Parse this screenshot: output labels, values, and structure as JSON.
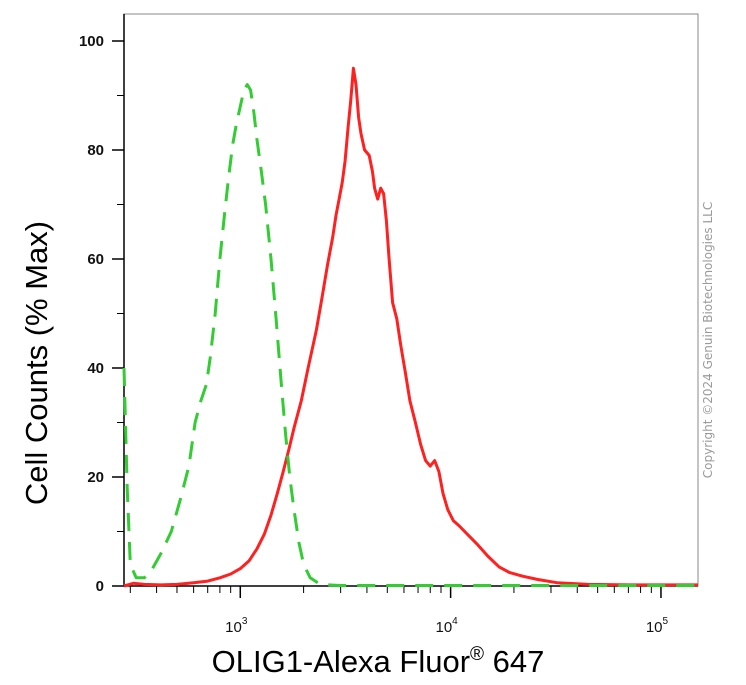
{
  "chart_data": {
    "type": "line",
    "title": "",
    "xlabel": "OLIG1-Alexa Fluor",
    "xlabel_superscript": "®",
    "xlabel_suffix": " 647",
    "ylabel": "Cell Counts (% Max)",
    "x_scale": "log",
    "xlim": [
      280,
      150000
    ],
    "ylim": [
      0,
      100
    ],
    "y_ticks": [
      "0",
      "20",
      "40",
      "60",
      "80",
      "100"
    ],
    "x_ticks": [
      {
        "value": 1000,
        "base": "10",
        "exp": "3"
      },
      {
        "value": 10000,
        "base": "10",
        "exp": "4"
      },
      {
        "value": 100000,
        "base": "10",
        "exp": "5"
      }
    ],
    "grid": false,
    "series": [
      {
        "color": "#ff2020",
        "style": "solid",
        "points": [
          [
            280,
            0
          ],
          [
            310,
            0.5
          ],
          [
            350,
            0.3
          ],
          [
            420,
            0.2
          ],
          [
            500,
            0.3
          ],
          [
            600,
            0.6
          ],
          [
            700,
            0.9
          ],
          [
            800,
            1.5
          ],
          [
            900,
            2.2
          ],
          [
            1000,
            3.2
          ],
          [
            1100,
            4.6
          ],
          [
            1200,
            6.8
          ],
          [
            1300,
            9.5
          ],
          [
            1400,
            13
          ],
          [
            1500,
            17
          ],
          [
            1600,
            21
          ],
          [
            1700,
            25
          ],
          [
            1800,
            29
          ],
          [
            1950,
            34
          ],
          [
            2100,
            40
          ],
          [
            2300,
            47
          ],
          [
            2450,
            53
          ],
          [
            2600,
            59
          ],
          [
            2750,
            64
          ],
          [
            2850,
            68
          ],
          [
            2950,
            71
          ],
          [
            3050,
            74
          ],
          [
            3150,
            78
          ],
          [
            3250,
            84
          ],
          [
            3350,
            89
          ],
          [
            3450,
            95
          ],
          [
            3550,
            92
          ],
          [
            3650,
            86
          ],
          [
            3750,
            83
          ],
          [
            3900,
            80
          ],
          [
            4100,
            79
          ],
          [
            4250,
            76
          ],
          [
            4350,
            73
          ],
          [
            4500,
            71
          ],
          [
            4650,
            73
          ],
          [
            4800,
            72
          ],
          [
            4950,
            67
          ],
          [
            5100,
            60
          ],
          [
            5300,
            52
          ],
          [
            5550,
            49
          ],
          [
            5800,
            44
          ],
          [
            6100,
            39
          ],
          [
            6400,
            34
          ],
          [
            6800,
            30
          ],
          [
            7200,
            26
          ],
          [
            7600,
            23
          ],
          [
            8000,
            22
          ],
          [
            8400,
            23
          ],
          [
            8800,
            21
          ],
          [
            9200,
            17
          ],
          [
            9700,
            14
          ],
          [
            10300,
            12
          ],
          [
            11000,
            11
          ],
          [
            12000,
            9.5
          ],
          [
            13500,
            7.5
          ],
          [
            15000,
            5.5
          ],
          [
            17000,
            3.5
          ],
          [
            19000,
            2.5
          ],
          [
            22000,
            1.8
          ],
          [
            26000,
            1.2
          ],
          [
            32000,
            0.6
          ],
          [
            45000,
            0.3
          ],
          [
            70000,
            0.2
          ],
          [
            150000,
            0.2
          ]
        ]
      },
      {
        "color": "#33cc33",
        "style": "dashed",
        "points": [
          [
            280,
            40
          ],
          [
            290,
            18
          ],
          [
            300,
            4
          ],
          [
            320,
            1.5
          ],
          [
            350,
            1.5
          ],
          [
            380,
            3
          ],
          [
            420,
            6
          ],
          [
            470,
            10
          ],
          [
            520,
            16
          ],
          [
            570,
            22
          ],
          [
            610,
            30
          ],
          [
            650,
            34
          ],
          [
            690,
            37
          ],
          [
            720,
            42
          ],
          [
            760,
            50
          ],
          [
            800,
            60
          ],
          [
            840,
            68
          ],
          [
            880,
            75
          ],
          [
            920,
            81
          ],
          [
            960,
            85
          ],
          [
            1000,
            88
          ],
          [
            1040,
            91
          ],
          [
            1080,
            92
          ],
          [
            1120,
            91
          ],
          [
            1160,
            87
          ],
          [
            1200,
            82
          ],
          [
            1260,
            76
          ],
          [
            1320,
            70
          ],
          [
            1400,
            60
          ],
          [
            1480,
            49
          ],
          [
            1560,
            38
          ],
          [
            1640,
            28
          ],
          [
            1720,
            20
          ],
          [
            1800,
            14
          ],
          [
            1900,
            8
          ],
          [
            2000,
            4
          ],
          [
            2150,
            1.5
          ],
          [
            2400,
            0.3
          ],
          [
            3000,
            0.1
          ],
          [
            10000,
            0.1
          ],
          [
            150000,
            0.1
          ]
        ]
      }
    ]
  },
  "copyright": "Copyright ©2024 Genuin Biotechnologies LLC"
}
